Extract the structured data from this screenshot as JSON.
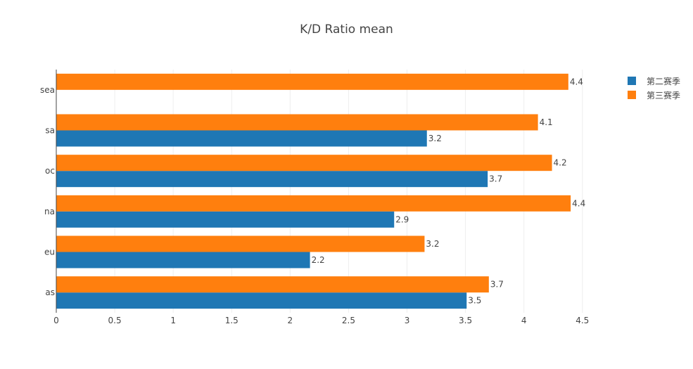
{
  "chart_data": {
    "type": "bar",
    "orientation": "horizontal",
    "title": "K/D Ratio mean",
    "xlabel": "",
    "ylabel": "",
    "categories": [
      "as",
      "eu",
      "na",
      "oc",
      "sa",
      "sea"
    ],
    "series": [
      {
        "name": "第二赛季",
        "color": "#1f77b4",
        "values": [
          3.51,
          2.17,
          2.89,
          3.69,
          3.17,
          null
        ],
        "labels": [
          "3.5",
          "2.2",
          "2.9",
          "3.7",
          "3.2",
          ""
        ]
      },
      {
        "name": "第三赛季",
        "color": "#ff7f0e",
        "values": [
          3.7,
          3.15,
          4.4,
          4.24,
          4.12,
          4.38
        ],
        "labels": [
          "3.7",
          "3.2",
          "4.4",
          "4.2",
          "4.1",
          "4.4"
        ]
      }
    ],
    "xlim": [
      0,
      4.7
    ],
    "xticks": [
      0,
      0.5,
      1,
      1.5,
      2,
      2.5,
      3,
      3.5,
      4,
      4.5
    ],
    "xtick_labels": [
      "0",
      "0.5",
      "1",
      "1.5",
      "2",
      "2.5",
      "3",
      "3.5",
      "4",
      "4.5"
    ],
    "grid": true,
    "legend_position": "top-right"
  }
}
